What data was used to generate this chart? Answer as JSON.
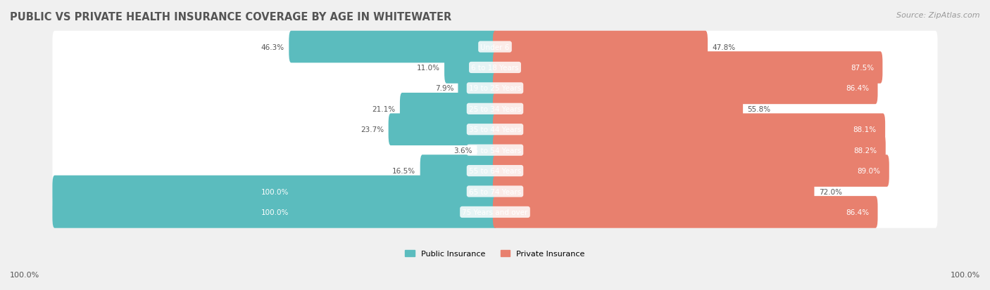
{
  "title": "PUBLIC VS PRIVATE HEALTH INSURANCE COVERAGE BY AGE IN WHITEWATER",
  "source": "Source: ZipAtlas.com",
  "categories": [
    "Under 6",
    "6 to 18 Years",
    "19 to 25 Years",
    "25 to 34 Years",
    "35 to 44 Years",
    "45 to 54 Years",
    "55 to 64 Years",
    "65 to 74 Years",
    "75 Years and over"
  ],
  "public_values": [
    46.3,
    11.0,
    7.9,
    21.1,
    23.7,
    3.6,
    16.5,
    100.0,
    100.0
  ],
  "private_values": [
    47.8,
    87.5,
    86.4,
    55.8,
    88.1,
    88.2,
    89.0,
    72.0,
    86.4
  ],
  "public_color": "#5bbcbe",
  "private_color": "#e8806e",
  "bg_color": "#f0f0f0",
  "bar_bg_color": "#e8e8e8",
  "title_color": "#555555",
  "label_color": "#555555",
  "source_color": "#999999",
  "bar_height": 0.55,
  "figsize": [
    14.06,
    4.14
  ],
  "dpi": 100
}
